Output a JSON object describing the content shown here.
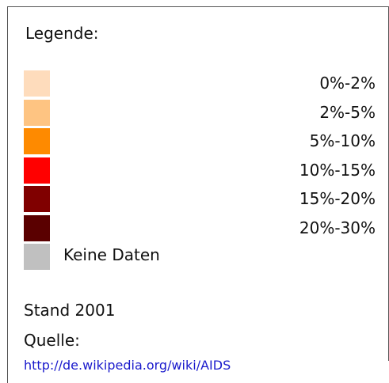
{
  "legend": {
    "title": "Legende:",
    "items": [
      {
        "label": "0%-2%",
        "color": "#fedcbc"
      },
      {
        "label": "2%-5%",
        "color": "#fec482"
      },
      {
        "label": "5%-10%",
        "color": "#fe8a00"
      },
      {
        "label": "10%-15%",
        "color": "#ff0000"
      },
      {
        "label": "15%-20%",
        "color": "#800000"
      },
      {
        "label": "20%-30%",
        "color": "#5a0000"
      }
    ],
    "no_data": {
      "label": "Keine Daten",
      "color": "#c0c0c0"
    }
  },
  "footer": {
    "stand": "Stand 2001",
    "source_label": "Quelle:",
    "url": "http://de.wikipedia.org/wiki/AIDS"
  }
}
